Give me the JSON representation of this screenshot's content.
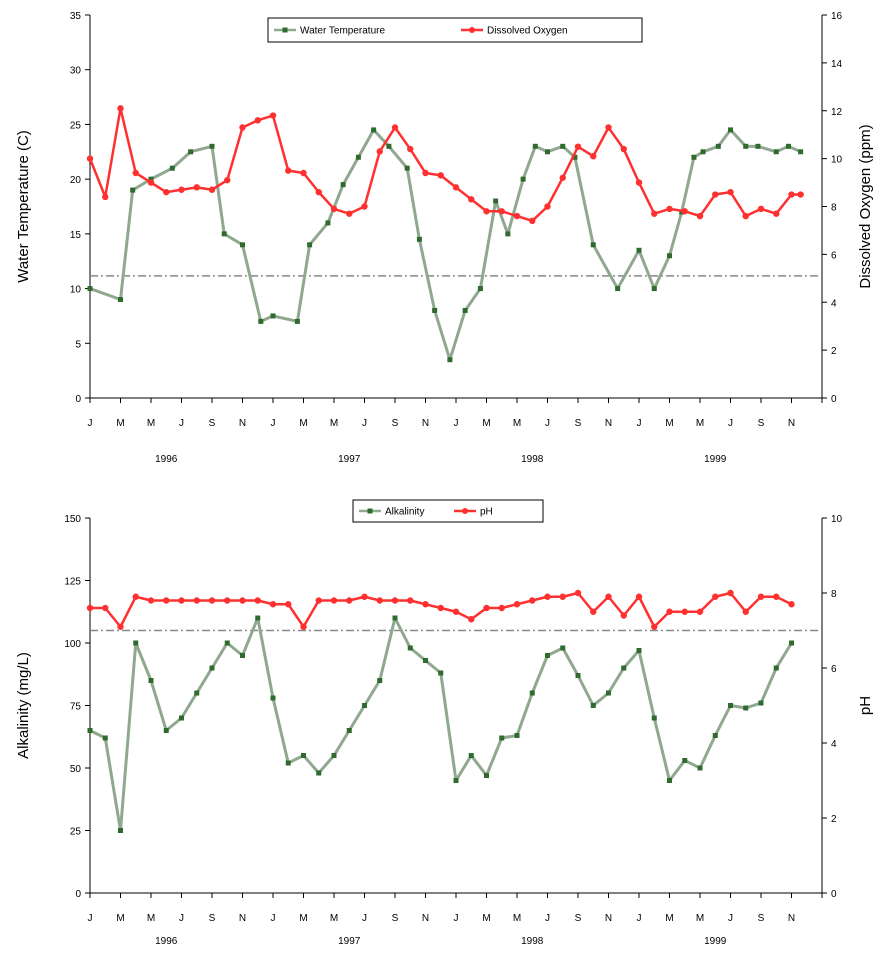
{
  "chart_data": [
    {
      "type": "line",
      "ylabel": "Water Temperature (C)",
      "y2label": "Dissolved Oxygen (ppm)",
      "ylim": [
        0,
        35
      ],
      "y2lim": [
        0,
        16
      ],
      "yticks": [
        "0",
        "5",
        "10",
        "15",
        "20",
        "25",
        "30",
        "35"
      ],
      "y2ticks": [
        "0",
        "2",
        "4",
        "6",
        "8",
        "10",
        "12",
        "14",
        "16"
      ],
      "month_labels": [
        "J",
        "M",
        "M",
        "J",
        "S",
        "N",
        "J",
        "M",
        "M",
        "J",
        "S",
        "N",
        "J",
        "M",
        "M",
        "J",
        "S",
        "N",
        "J",
        "M",
        "M",
        "J",
        "S",
        "N"
      ],
      "year_labels": [
        "1996",
        "1997",
        "1998",
        "1999"
      ],
      "reference_line": {
        "axis": "y2",
        "value": 5.1
      },
      "legend": {
        "position": "top-center",
        "entries": [
          "Water Temperature",
          "Dissolved Oxygen"
        ]
      },
      "colors": {
        "primary": "#2f6a2f",
        "secondary": "#ff3030",
        "reference": "#888888"
      },
      "series": [
        {
          "name": "Water Temperature",
          "axis": "y",
          "x": [
            0,
            1,
            1.4,
            2,
            2.7,
            3.3,
            4,
            4.4,
            5,
            5.6,
            6,
            6.8,
            7.2,
            7.8,
            8.3,
            8.8,
            9.3,
            9.8,
            10.4,
            10.8,
            11.3,
            11.8,
            12.3,
            12.8,
            13.3,
            13.7,
            14.2,
            14.6,
            15,
            15.5,
            15.9,
            16.5,
            17.3,
            18,
            18.5,
            19,
            19.4,
            19.8,
            20.1,
            20.6,
            21,
            21.5,
            21.9,
            22.5,
            22.9,
            23.3
          ],
          "values": [
            10,
            9,
            19,
            20,
            21,
            22.5,
            23,
            15,
            14,
            7,
            7.5,
            7,
            14,
            16,
            19.5,
            22,
            24.5,
            23,
            21,
            14.5,
            8,
            3.5,
            8,
            10,
            18,
            15,
            20,
            23,
            22.5,
            23,
            22,
            14,
            10,
            13.5,
            10,
            13,
            17,
            22,
            22.5,
            23,
            24.5,
            23,
            23,
            22.5,
            23,
            22.5
          ]
        },
        {
          "name": "Dissolved Oxygen",
          "axis": "y2",
          "x": [
            0,
            0.5,
            1,
            1.5,
            2,
            2.5,
            3,
            3.5,
            4,
            4.5,
            5,
            5.5,
            6,
            6.5,
            7,
            7.5,
            8,
            8.5,
            9,
            9.5,
            10,
            10.5,
            11,
            11.5,
            12,
            12.5,
            13,
            13.5,
            14,
            14.5,
            15,
            15.5,
            16,
            16.5,
            17,
            17.5,
            18,
            18.5,
            19,
            19.5,
            20,
            20.5,
            21,
            21.5,
            22,
            22.5,
            23,
            23.3
          ],
          "values": [
            10,
            8.4,
            12.1,
            9.4,
            9,
            8.6,
            8.7,
            8.8,
            8.7,
            9.1,
            11.3,
            11.6,
            11.8,
            9.5,
            9.4,
            8.6,
            7.9,
            7.7,
            8,
            10.3,
            11.3,
            10.4,
            9.4,
            9.3,
            8.8,
            8.3,
            7.8,
            7.8,
            7.6,
            7.4,
            8,
            9.2,
            10.5,
            10.1,
            11.3,
            10.4,
            9,
            7.7,
            7.9,
            7.8,
            7.6,
            8.5,
            8.6,
            7.6,
            7.9,
            7.7,
            8.5,
            8.5
          ]
        }
      ]
    },
    {
      "type": "line",
      "ylabel": "Alkalinity (mg/L)",
      "y2label": "pH",
      "ylim": [
        0,
        150
      ],
      "y2lim": [
        0,
        10
      ],
      "yticks": [
        "0",
        "25",
        "50",
        "75",
        "100",
        "125",
        "150"
      ],
      "y2ticks": [
        "0",
        "2",
        "4",
        "6",
        "8",
        "10"
      ],
      "month_labels": [
        "J",
        "M",
        "M",
        "J",
        "S",
        "N",
        "J",
        "M",
        "M",
        "J",
        "S",
        "N",
        "J",
        "M",
        "M",
        "J",
        "S",
        "N",
        "J",
        "M",
        "M",
        "J",
        "S",
        "N"
      ],
      "year_labels": [
        "1996",
        "1997",
        "1998",
        "1999"
      ],
      "reference_line": {
        "axis": "y2",
        "value": 7.0
      },
      "legend": {
        "position": "top-center",
        "entries": [
          "Alkalinity",
          "pH"
        ]
      },
      "colors": {
        "primary": "#2f6a2f",
        "secondary": "#ff3030",
        "reference": "#888888"
      },
      "series": [
        {
          "name": "Alkalinity",
          "axis": "y",
          "x": [
            0,
            0.5,
            1,
            1.5,
            2,
            2.5,
            3,
            3.5,
            4,
            4.5,
            5,
            5.5,
            6,
            6.5,
            7,
            7.5,
            8,
            8.5,
            9,
            9.5,
            10,
            10.5,
            11,
            11.5,
            12,
            12.5,
            13,
            13.5,
            14,
            14.5,
            15,
            15.5,
            16,
            16.5,
            17,
            17.5,
            18,
            18.5,
            19,
            19.5,
            20,
            20.5,
            21,
            21.5,
            22,
            22.5,
            23
          ],
          "values": [
            65,
            62,
            25,
            100,
            85,
            65,
            70,
            80,
            90,
            100,
            95,
            110,
            78,
            52,
            55,
            48,
            55,
            65,
            75,
            85,
            110,
            98,
            93,
            88,
            45,
            55,
            47,
            62,
            63,
            80,
            95,
            98,
            87,
            75,
            80,
            90,
            97,
            70,
            45,
            53,
            50,
            63,
            75,
            74,
            76,
            90,
            100
          ]
        },
        {
          "name": "pH",
          "axis": "y2",
          "x": [
            0,
            0.5,
            1,
            1.5,
            2,
            2.5,
            3,
            3.5,
            4,
            4.5,
            5,
            5.5,
            6,
            6.5,
            7,
            7.5,
            8,
            8.5,
            9,
            9.5,
            10,
            10.5,
            11,
            11.5,
            12,
            12.5,
            13,
            13.5,
            14,
            14.5,
            15,
            15.5,
            16,
            16.5,
            17,
            17.5,
            18,
            18.5,
            19,
            19.5,
            20,
            20.5,
            21,
            21.5,
            22,
            22.5,
            23
          ],
          "values": [
            7.6,
            7.6,
            7.1,
            7.9,
            7.8,
            7.8,
            7.8,
            7.8,
            7.8,
            7.8,
            7.8,
            7.8,
            7.7,
            7.7,
            7.1,
            7.8,
            7.8,
            7.8,
            7.9,
            7.8,
            7.8,
            7.8,
            7.7,
            7.6,
            7.5,
            7.3,
            7.6,
            7.6,
            7.7,
            7.8,
            7.9,
            7.9,
            8,
            7.5,
            7.9,
            7.4,
            7.9,
            7.1,
            7.5,
            7.5,
            7.5,
            7.9,
            8,
            7.5,
            7.9,
            7.9,
            7.7
          ]
        }
      ]
    }
  ]
}
